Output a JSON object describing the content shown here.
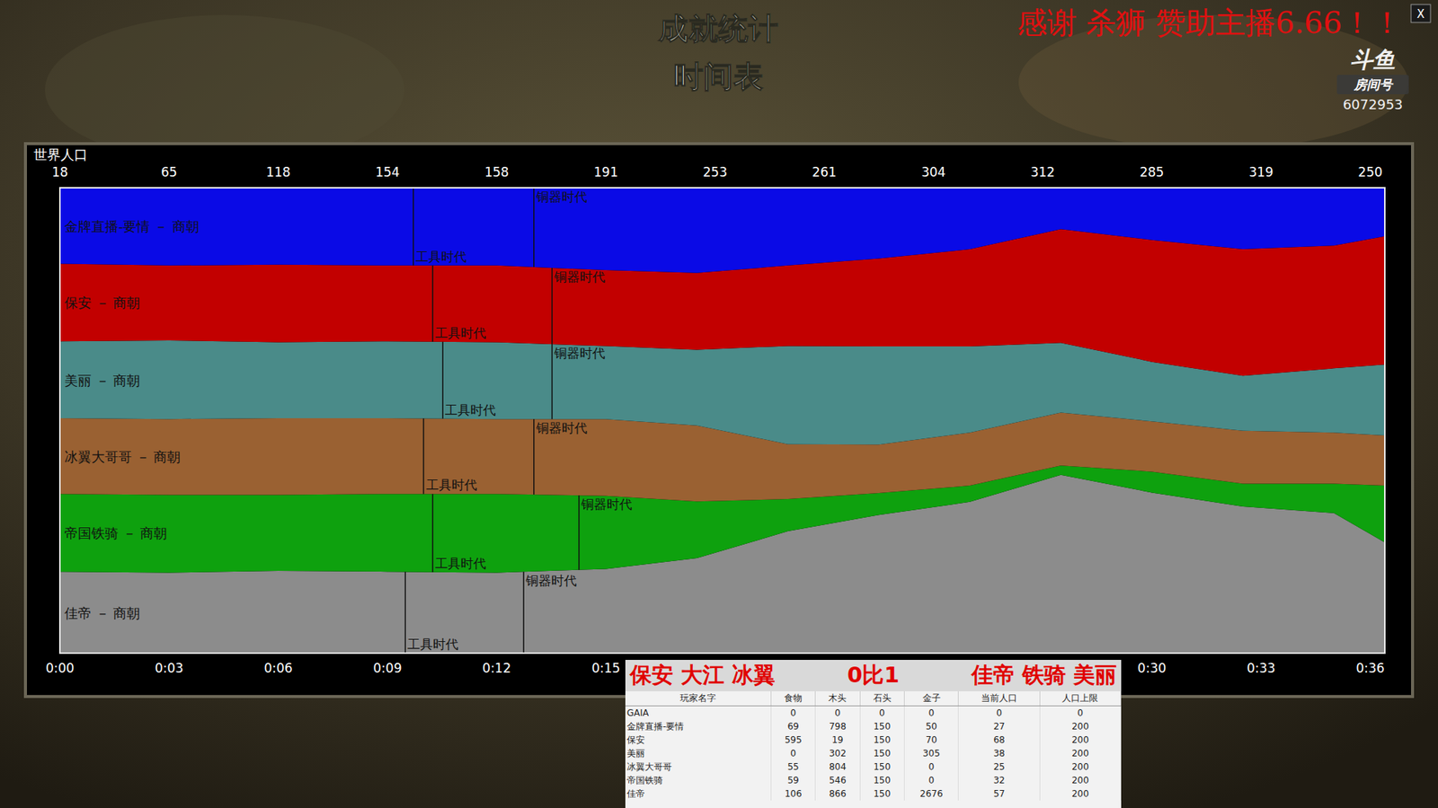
{
  "header": {
    "title": "成就统计",
    "subtitle": "时间表",
    "close": "X"
  },
  "stream_overlay": {
    "donation": "感谢 杀狮 赞助主播6.66！！",
    "logo": "斗鱼",
    "room_label": "房间号",
    "room_number": "6072953"
  },
  "chart_data": {
    "type": "area",
    "stacked": true,
    "tick_labels": "x",
    "x": [
      0,
      3,
      6,
      9,
      12,
      15,
      17.5,
      20,
      22.5,
      25,
      27.5,
      30,
      32.5,
      35,
      36.4
    ],
    "xlim": [
      0,
      36.4
    ],
    "ylim": [
      0,
      100
    ],
    "xticks": [
      {
        "value": 0,
        "label": "0:00"
      },
      {
        "value": 3,
        "label": "0:03"
      },
      {
        "value": 6,
        "label": "0:06"
      },
      {
        "value": 9,
        "label": "0:09"
      },
      {
        "value": 12,
        "label": "0:12"
      },
      {
        "value": 15,
        "label": "0:15"
      },
      {
        "value": 30,
        "label": "0:30"
      },
      {
        "value": 33,
        "label": "0:33"
      },
      {
        "value": 36,
        "label": "0:36"
      }
    ],
    "world_population": {
      "label": "世界人口",
      "x": [
        0,
        3,
        6,
        9,
        12,
        15,
        18,
        21,
        24,
        27,
        30,
        33,
        36
      ],
      "values": [
        18,
        65,
        118,
        154,
        158,
        191,
        253,
        261,
        304,
        312,
        285,
        319,
        250
      ]
    },
    "series": [
      {
        "name": "佳帝 － 商朝",
        "color": "#8c8c8c",
        "values": [
          17.5,
          17.3,
          17.7,
          17.5,
          17.3,
          18.1,
          20.4,
          26.2,
          29.7,
          32.5,
          38.3,
          34.5,
          31.5,
          30.1,
          23.8
        ],
        "ages": [
          {
            "label": "工具时代",
            "x": 9.49
          },
          {
            "label": "铜器时代",
            "x": 12.74
          }
        ]
      },
      {
        "name": "帝国铁骑 － 商朝",
        "color": "#0ea10e",
        "values": [
          16.7,
          16.7,
          16.3,
          16.7,
          16.9,
          15.7,
          12.2,
          6.9,
          4.7,
          3.5,
          2.0,
          4.5,
          4.9,
          6.3,
          12.2
        ],
        "ages": [
          {
            "label": "工具时代",
            "x": 10.24
          },
          {
            "label": "铜器时代",
            "x": 14.26
          }
        ]
      },
      {
        "name": "冰翼大哥哥 － 商朝",
        "color": "#9a6132",
        "values": [
          16.3,
          16.3,
          16.5,
          16.3,
          16.1,
          16.5,
          16.3,
          11.8,
          10.4,
          11.4,
          11.4,
          10.8,
          11.4,
          11.0,
          10.8
        ],
        "ages": [
          {
            "label": "工具时代",
            "x": 9.99
          },
          {
            "label": "铜器时代",
            "x": 13.02
          }
        ]
      },
      {
        "name": "美丽 － 商朝",
        "color": "#4a8b89",
        "values": [
          16.5,
          16.9,
          16.3,
          16.5,
          16.5,
          15.7,
          16.3,
          21.1,
          21.1,
          18.5,
          15.0,
          12.8,
          11.8,
          13.8,
          15.2
        ],
        "ages": [
          {
            "label": "工具时代",
            "x": 10.52
          },
          {
            "label": "铜器时代",
            "x": 13.52
          }
        ]
      },
      {
        "name": "保安 － 商朝",
        "color": "#c20000",
        "values": [
          16.7,
          16.1,
          16.7,
          16.3,
          16.5,
          16.3,
          16.5,
          17.3,
          18.9,
          20.9,
          24.4,
          26.2,
          27.2,
          26.4,
          27.6
        ],
        "ages": [
          {
            "label": "工具时代",
            "x": 10.24
          },
          {
            "label": "铜器时代",
            "x": 13.52
          }
        ]
      },
      {
        "name": "金牌直播-要情 － 商朝",
        "color": "#0a0ae6",
        "values": [
          16.3,
          16.7,
          16.5,
          16.7,
          16.7,
          17.7,
          18.3,
          16.7,
          15.2,
          13.2,
          8.9,
          11.2,
          13.2,
          12.4,
          10.4
        ],
        "ages": [
          {
            "label": "工具时代",
            "x": 9.71
          },
          {
            "label": "铜器时代",
            "x": 13.02
          }
        ]
      }
    ]
  },
  "score_table": {
    "teams_left": "保安 大江 冰翼",
    "score": "0比1",
    "teams_right": "佳帝 铁骑 美丽",
    "columns": [
      "玩家名字",
      "食物",
      "木头",
      "石头",
      "金子",
      "当前人口",
      "人口上限"
    ],
    "rows": [
      [
        "GAIA",
        0,
        0,
        0,
        0,
        0,
        0
      ],
      [
        "金牌直播-要情",
        69,
        798,
        150,
        50,
        27,
        200
      ],
      [
        "保安",
        595,
        19,
        150,
        70,
        68,
        200
      ],
      [
        "美丽",
        0,
        302,
        150,
        305,
        38,
        200
      ],
      [
        "冰翼大哥哥",
        55,
        804,
        150,
        0,
        25,
        200
      ],
      [
        "帝国铁骑",
        59,
        546,
        150,
        0,
        32,
        200
      ],
      [
        "佳帝",
        106,
        866,
        150,
        2676,
        57,
        200
      ]
    ]
  }
}
